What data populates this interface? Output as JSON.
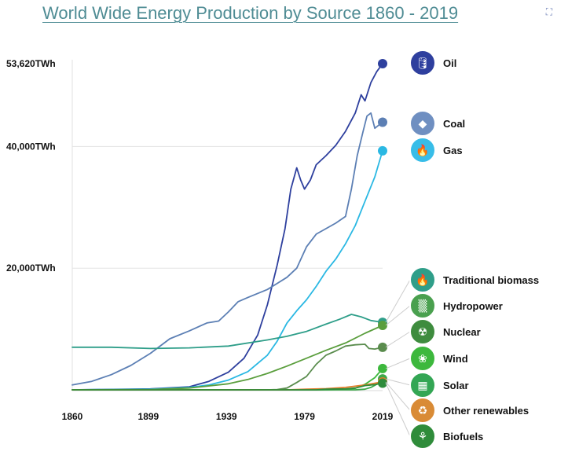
{
  "title": "World Wide Energy Production by Source 1860 - 2019",
  "corner_icon": "expand-icon",
  "chart_data": {
    "type": "line",
    "title": "World Wide Energy Production by Source 1860 - 2019",
    "xlabel": "",
    "ylabel": "",
    "x_ticks": [
      "1860",
      "1899",
      "1939",
      "1979",
      "2019"
    ],
    "x_range": [
      1860,
      2019
    ],
    "y_ticks": [
      {
        "value": 20000,
        "label": "20,000TWh"
      },
      {
        "value": 40000,
        "label": "40,000TWh"
      },
      {
        "value": 53620,
        "label": "53,620TWh"
      }
    ],
    "y_range": [
      0,
      53620
    ],
    "grid": "horizontal",
    "legend": "right",
    "series": [
      {
        "name": "Oil",
        "color": "#2e3f9e",
        "icon": "oil-barrel-icon",
        "points": [
          [
            1860,
            0
          ],
          [
            1900,
            150
          ],
          [
            1920,
            500
          ],
          [
            1930,
            1400
          ],
          [
            1940,
            2900
          ],
          [
            1948,
            5200
          ],
          [
            1955,
            9000
          ],
          [
            1960,
            14000
          ],
          [
            1965,
            20500
          ],
          [
            1969,
            26500
          ],
          [
            1972,
            33000
          ],
          [
            1975,
            36500
          ],
          [
            1977,
            34500
          ],
          [
            1979,
            33000
          ],
          [
            1982,
            34500
          ],
          [
            1985,
            37000
          ],
          [
            1990,
            38500
          ],
          [
            1995,
            40200
          ],
          [
            2000,
            42500
          ],
          [
            2005,
            45500
          ],
          [
            2008,
            48500
          ],
          [
            2010,
            47500
          ],
          [
            2013,
            50500
          ],
          [
            2016,
            52300
          ],
          [
            2019,
            53620
          ]
        ]
      },
      {
        "name": "Coal",
        "color": "#5b7fb4",
        "icon": "coal-icon",
        "points": [
          [
            1860,
            800
          ],
          [
            1870,
            1400
          ],
          [
            1880,
            2500
          ],
          [
            1890,
            4000
          ],
          [
            1900,
            6000
          ],
          [
            1910,
            8400
          ],
          [
            1920,
            9700
          ],
          [
            1929,
            11000
          ],
          [
            1935,
            11300
          ],
          [
            1940,
            12800
          ],
          [
            1945,
            14500
          ],
          [
            1950,
            15200
          ],
          [
            1960,
            16500
          ],
          [
            1965,
            17500
          ],
          [
            1970,
            18500
          ],
          [
            1975,
            20000
          ],
          [
            1980,
            23500
          ],
          [
            1985,
            25600
          ],
          [
            1990,
            26500
          ],
          [
            1995,
            27400
          ],
          [
            2000,
            28500
          ],
          [
            2003,
            33000
          ],
          [
            2006,
            38500
          ],
          [
            2009,
            42500
          ],
          [
            2011,
            45000
          ],
          [
            2013,
            45500
          ],
          [
            2015,
            43000
          ],
          [
            2017,
            43500
          ],
          [
            2019,
            44000
          ]
        ]
      },
      {
        "name": "Gas",
        "color": "#2bb8e3",
        "icon": "flame-icon",
        "points": [
          [
            1860,
            0
          ],
          [
            1900,
            100
          ],
          [
            1920,
            400
          ],
          [
            1930,
            800
          ],
          [
            1940,
            1600
          ],
          [
            1950,
            3000
          ],
          [
            1960,
            5700
          ],
          [
            1965,
            8000
          ],
          [
            1970,
            11000
          ],
          [
            1975,
            13000
          ],
          [
            1980,
            14800
          ],
          [
            1985,
            17000
          ],
          [
            1990,
            19500
          ],
          [
            1995,
            21500
          ],
          [
            2000,
            24000
          ],
          [
            2005,
            27000
          ],
          [
            2010,
            31000
          ],
          [
            2015,
            35000
          ],
          [
            2019,
            39300
          ]
        ]
      },
      {
        "name": "Traditional biomass",
        "color": "#2f9e89",
        "icon": "fire-icon",
        "points": [
          [
            1860,
            7000
          ],
          [
            1880,
            7000
          ],
          [
            1900,
            6800
          ],
          [
            1920,
            6900
          ],
          [
            1940,
            7200
          ],
          [
            1960,
            8200
          ],
          [
            1970,
            8800
          ],
          [
            1980,
            9600
          ],
          [
            1990,
            10800
          ],
          [
            1997,
            11600
          ],
          [
            2003,
            12400
          ],
          [
            2008,
            12000
          ],
          [
            2013,
            11400
          ],
          [
            2019,
            11100
          ]
        ]
      },
      {
        "name": "Hydropower",
        "color": "#5a9e3c",
        "icon": "dam-icon",
        "points": [
          [
            1860,
            0
          ],
          [
            1900,
            50
          ],
          [
            1920,
            300
          ],
          [
            1940,
            1000
          ],
          [
            1950,
            1700
          ],
          [
            1960,
            2700
          ],
          [
            1970,
            3900
          ],
          [
            1980,
            5200
          ],
          [
            1990,
            6500
          ],
          [
            2000,
            7700
          ],
          [
            2010,
            9300
          ],
          [
            2019,
            10600
          ]
        ]
      },
      {
        "name": "Nuclear",
        "color": "#5a8c4e",
        "icon": "radiation-icon",
        "points": [
          [
            1860,
            0
          ],
          [
            1960,
            0
          ],
          [
            1965,
            40
          ],
          [
            1970,
            300
          ],
          [
            1975,
            1200
          ],
          [
            1980,
            2200
          ],
          [
            1985,
            4200
          ],
          [
            1990,
            5700
          ],
          [
            1995,
            6400
          ],
          [
            2000,
            7200
          ],
          [
            2005,
            7400
          ],
          [
            2010,
            7500
          ],
          [
            2012,
            6800
          ],
          [
            2015,
            6700
          ],
          [
            2019,
            7000
          ]
        ]
      },
      {
        "name": "Wind",
        "color": "#3db83d",
        "icon": "wind-turbine-icon",
        "points": [
          [
            1860,
            0
          ],
          [
            1990,
            0
          ],
          [
            2000,
            80
          ],
          [
            2005,
            250
          ],
          [
            2010,
            900
          ],
          [
            2015,
            2000
          ],
          [
            2019,
            3500
          ]
        ]
      },
      {
        "name": "Solar",
        "color": "#3ca84a",
        "icon": "solar-panel-icon",
        "points": [
          [
            1860,
            0
          ],
          [
            2005,
            0
          ],
          [
            2010,
            100
          ],
          [
            2013,
            400
          ],
          [
            2016,
            900
          ],
          [
            2019,
            1800
          ]
        ]
      },
      {
        "name": "Other renewables",
        "color": "#e07d2a",
        "icon": "leaf-recycle-icon",
        "points": [
          [
            1860,
            0
          ],
          [
            1970,
            0
          ],
          [
            1980,
            100
          ],
          [
            1990,
            200
          ],
          [
            2000,
            400
          ],
          [
            2010,
            800
          ],
          [
            2019,
            1300
          ]
        ]
      },
      {
        "name": "Biofuels",
        "color": "#2f8c3a",
        "icon": "corn-icon",
        "points": [
          [
            1860,
            0
          ],
          [
            1985,
            0
          ],
          [
            1990,
            100
          ],
          [
            2000,
            150
          ],
          [
            2005,
            300
          ],
          [
            2010,
            700
          ],
          [
            2015,
            850
          ],
          [
            2019,
            1100
          ]
        ]
      }
    ]
  }
}
